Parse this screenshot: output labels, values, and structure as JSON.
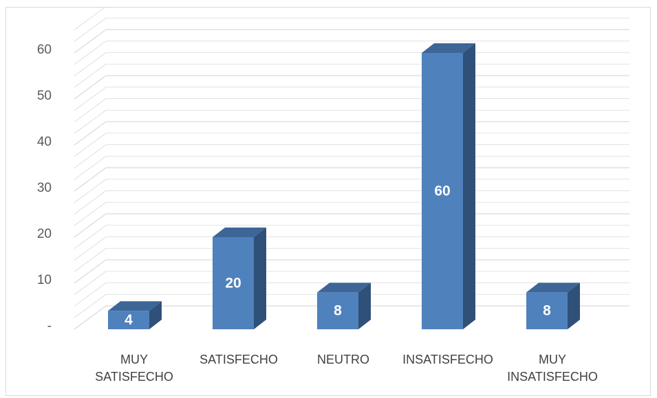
{
  "chart_data": {
    "type": "bar",
    "style": "3d-column",
    "categories": [
      "MUY SATISFECHO",
      "SATISFECHO",
      "NEUTRO",
      "INSATISFECHO",
      "MUY INSATISFECHO"
    ],
    "category_lines": [
      [
        "MUY",
        "SATISFECHO"
      ],
      [
        "SATISFECHO"
      ],
      [
        "NEUTRO"
      ],
      [
        "INSATISFECHO"
      ],
      [
        "MUY",
        "INSATISFECHO"
      ]
    ],
    "values": [
      4,
      20,
      8,
      60,
      8
    ],
    "data_labels": [
      "4",
      "20",
      "8",
      "60",
      "8"
    ],
    "yticks": [
      0,
      10,
      20,
      30,
      40,
      50,
      60
    ],
    "ytick_labels": [
      "-",
      "10",
      "20",
      "30",
      "40",
      "50",
      "60"
    ],
    "ylim": [
      0,
      65
    ],
    "grid": true,
    "legend": "none",
    "colors": {
      "bar_front": "#4f81bd",
      "bar_top": "#3d6697",
      "bar_side": "#2f5179",
      "grid": "#d9d9d9",
      "axis_text": "#595959",
      "data_label": "#ffffff"
    }
  }
}
